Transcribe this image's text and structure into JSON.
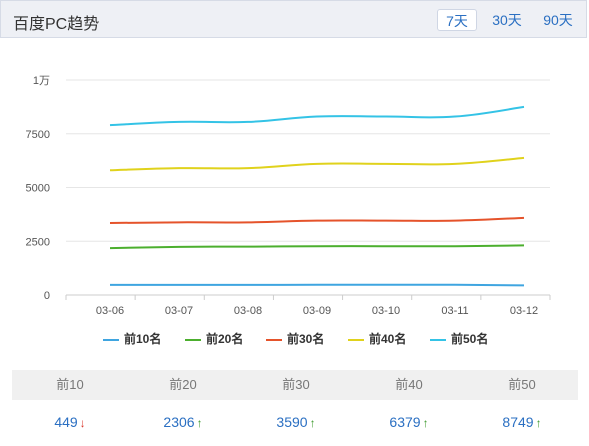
{
  "header": {
    "title": "百度PC趋势",
    "ranges": [
      {
        "label": "7天",
        "active": true
      },
      {
        "label": "30天",
        "active": false
      },
      {
        "label": "90天",
        "active": false
      }
    ]
  },
  "chart_data": {
    "type": "line",
    "x": [
      "03-06",
      "03-07",
      "03-08",
      "03-09",
      "03-10",
      "03-11",
      "03-12"
    ],
    "y_ticks": [
      "0",
      "2500",
      "5000",
      "7500",
      "1万"
    ],
    "ylim": [
      0,
      10000
    ],
    "grid": true,
    "legend_position": "bottom",
    "series": [
      {
        "name": "前10名",
        "color": "#3fa5e0",
        "values": [
          470,
          470,
          470,
          475,
          475,
          475,
          449
        ]
      },
      {
        "name": "前20名",
        "color": "#4caf2e",
        "values": [
          2180,
          2240,
          2250,
          2270,
          2270,
          2270,
          2306
        ]
      },
      {
        "name": "前30名",
        "color": "#e5532b",
        "values": [
          3350,
          3380,
          3380,
          3460,
          3460,
          3460,
          3590
        ]
      },
      {
        "name": "前40名",
        "color": "#e0d21c",
        "values": [
          5800,
          5900,
          5900,
          6100,
          6100,
          6100,
          6379
        ]
      },
      {
        "name": "前50名",
        "color": "#34c3e6",
        "values": [
          7900,
          8050,
          8050,
          8300,
          8300,
          8300,
          8749
        ]
      }
    ]
  },
  "summary": {
    "items": [
      {
        "label": "前10",
        "value": "449",
        "trend": "down",
        "arrow": "↓"
      },
      {
        "label": "前20",
        "value": "2306",
        "trend": "up",
        "arrow": "↑"
      },
      {
        "label": "前30",
        "value": "3590",
        "trend": "up",
        "arrow": "↑"
      },
      {
        "label": "前40",
        "value": "6379",
        "trend": "up",
        "arrow": "↑"
      },
      {
        "label": "前50",
        "value": "8749",
        "trend": "up",
        "arrow": "↑"
      }
    ]
  }
}
